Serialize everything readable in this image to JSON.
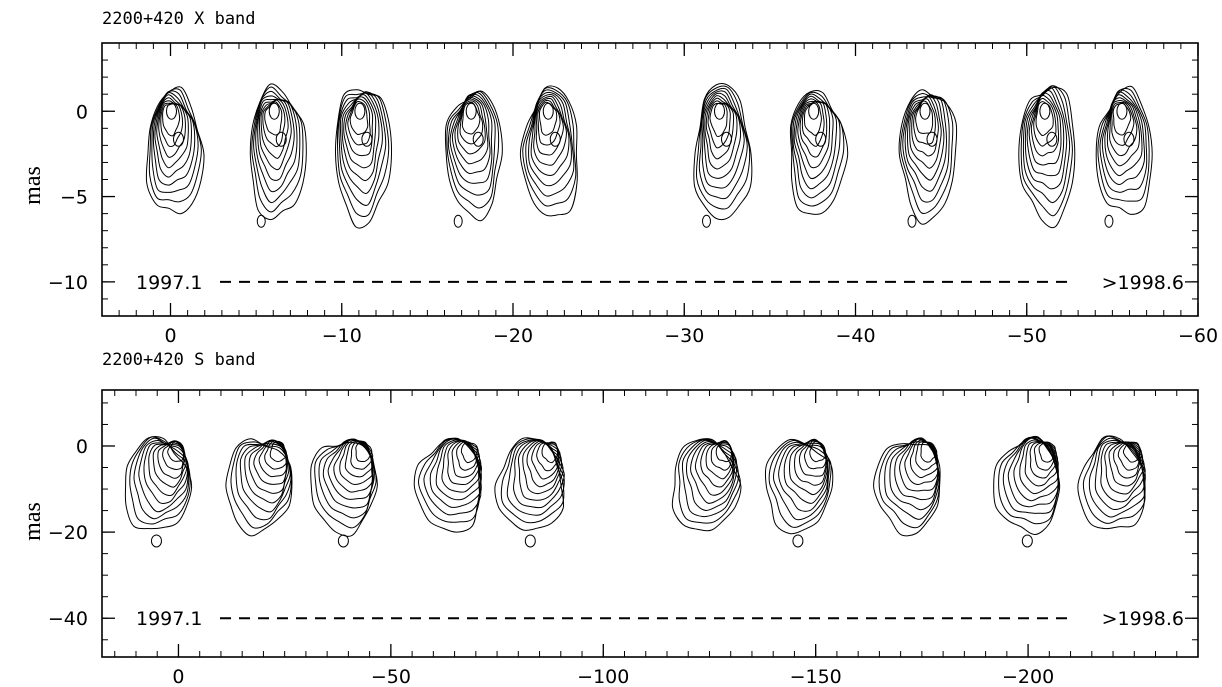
{
  "panels": [
    {
      "title": "2200+420 X band",
      "ylabel": "mas",
      "xticks": [
        {
          "value": 0,
          "label": "0"
        },
        {
          "value": -10,
          "label": "−10"
        },
        {
          "value": -20,
          "label": "−20"
        },
        {
          "value": -30,
          "label": "−30"
        },
        {
          "value": -40,
          "label": "−40"
        },
        {
          "value": -50,
          "label": "−50"
        },
        {
          "value": -60,
          "label": "−60"
        }
      ],
      "yticks": [
        {
          "value": 0,
          "label": "0"
        },
        {
          "value": -5,
          "label": "−5"
        },
        {
          "value": -10,
          "label": "−10"
        }
      ],
      "xlim": [
        4,
        -60
      ],
      "ylim": [
        -12,
        4
      ],
      "timeline": {
        "start_label": "1997.1",
        "end_label": ">1998.6"
      },
      "epoch_x": [
        0,
        -6,
        -11,
        -17.5,
        -22,
        -32,
        -37.5,
        -44,
        -51,
        -55.5
      ]
    },
    {
      "title": "2200+420 S band",
      "ylabel": "mas",
      "xticks": [
        {
          "value": 0,
          "label": "0"
        },
        {
          "value": -50,
          "label": "−50"
        },
        {
          "value": -100,
          "label": "−100"
        },
        {
          "value": -150,
          "label": "−150"
        },
        {
          "value": -200,
          "label": "−200"
        }
      ],
      "yticks": [
        {
          "value": 0,
          "label": "0"
        },
        {
          "value": -20,
          "label": "−20"
        },
        {
          "value": -40,
          "label": "−40"
        }
      ],
      "xlim": [
        18,
        -240
      ],
      "ylim": [
        -49,
        13
      ],
      "timeline": {
        "start_label": "1997.1",
        "end_label": ">1998.6"
      },
      "epoch_x": [
        0,
        -24,
        -44,
        -69,
        -88,
        -129,
        -151,
        -177,
        -205,
        -225
      ]
    }
  ]
}
